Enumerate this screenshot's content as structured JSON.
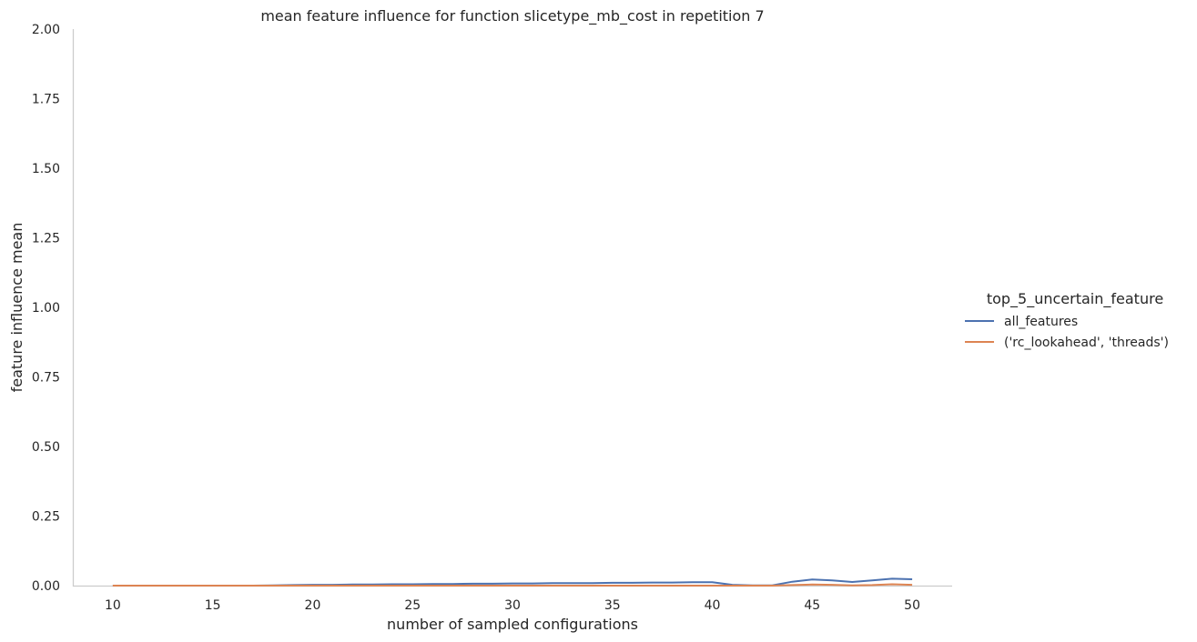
{
  "chart_data": {
    "type": "line",
    "title": "mean feature influence for function slicetype_mb_cost in repetition 7",
    "xlabel": "number of sampled configurations",
    "ylabel": "feature influence mean",
    "xlim": [
      8,
      52
    ],
    "ylim": [
      0,
      2.0
    ],
    "x_ticks": [
      10,
      15,
      20,
      25,
      30,
      35,
      40,
      45,
      50
    ],
    "y_ticks": [
      "0.00",
      "0.25",
      "0.50",
      "0.75",
      "1.00",
      "1.25",
      "1.50",
      "1.75",
      "2.00"
    ],
    "grid": false,
    "legend_position": "right",
    "legend_title": "top_5_uncertain_feature",
    "x": [
      10,
      11,
      12,
      13,
      14,
      15,
      16,
      17,
      18,
      19,
      20,
      21,
      22,
      23,
      24,
      25,
      26,
      27,
      28,
      29,
      30,
      31,
      32,
      33,
      34,
      35,
      36,
      37,
      38,
      39,
      40,
      41,
      42,
      43,
      44,
      45,
      46,
      47,
      48,
      49,
      50
    ],
    "series": [
      {
        "name": "all_features",
        "color": "#4c72b0",
        "values": [
          0.0,
          0.0,
          0.0,
          0.0,
          0.0,
          0.0,
          0.0,
          0.0,
          0.001,
          0.002,
          0.003,
          0.003,
          0.004,
          0.004,
          0.005,
          0.005,
          0.006,
          0.006,
          0.007,
          0.007,
          0.008,
          0.008,
          0.009,
          0.009,
          0.009,
          0.01,
          0.01,
          0.011,
          0.011,
          0.012,
          0.012,
          0.003,
          0.001,
          0.001,
          0.014,
          0.022,
          0.019,
          0.013,
          0.019,
          0.025,
          0.023
        ]
      },
      {
        "name": "('rc_lookahead', 'threads')",
        "color": "#dd8452",
        "values": [
          0.0,
          0.0,
          0.0,
          0.0,
          0.0,
          0.0,
          0.0,
          0.0,
          0.0,
          0.0,
          0.0,
          0.0,
          0.0,
          0.0,
          0.0,
          0.0,
          0.0,
          0.0,
          0.0,
          0.0,
          0.0,
          0.0,
          0.0,
          0.0,
          0.0,
          0.0,
          0.0,
          0.0,
          0.0,
          0.0,
          0.0,
          0.0,
          0.0,
          0.0,
          0.002,
          0.004,
          0.003,
          0.001,
          0.002,
          0.005,
          0.003
        ]
      }
    ]
  }
}
